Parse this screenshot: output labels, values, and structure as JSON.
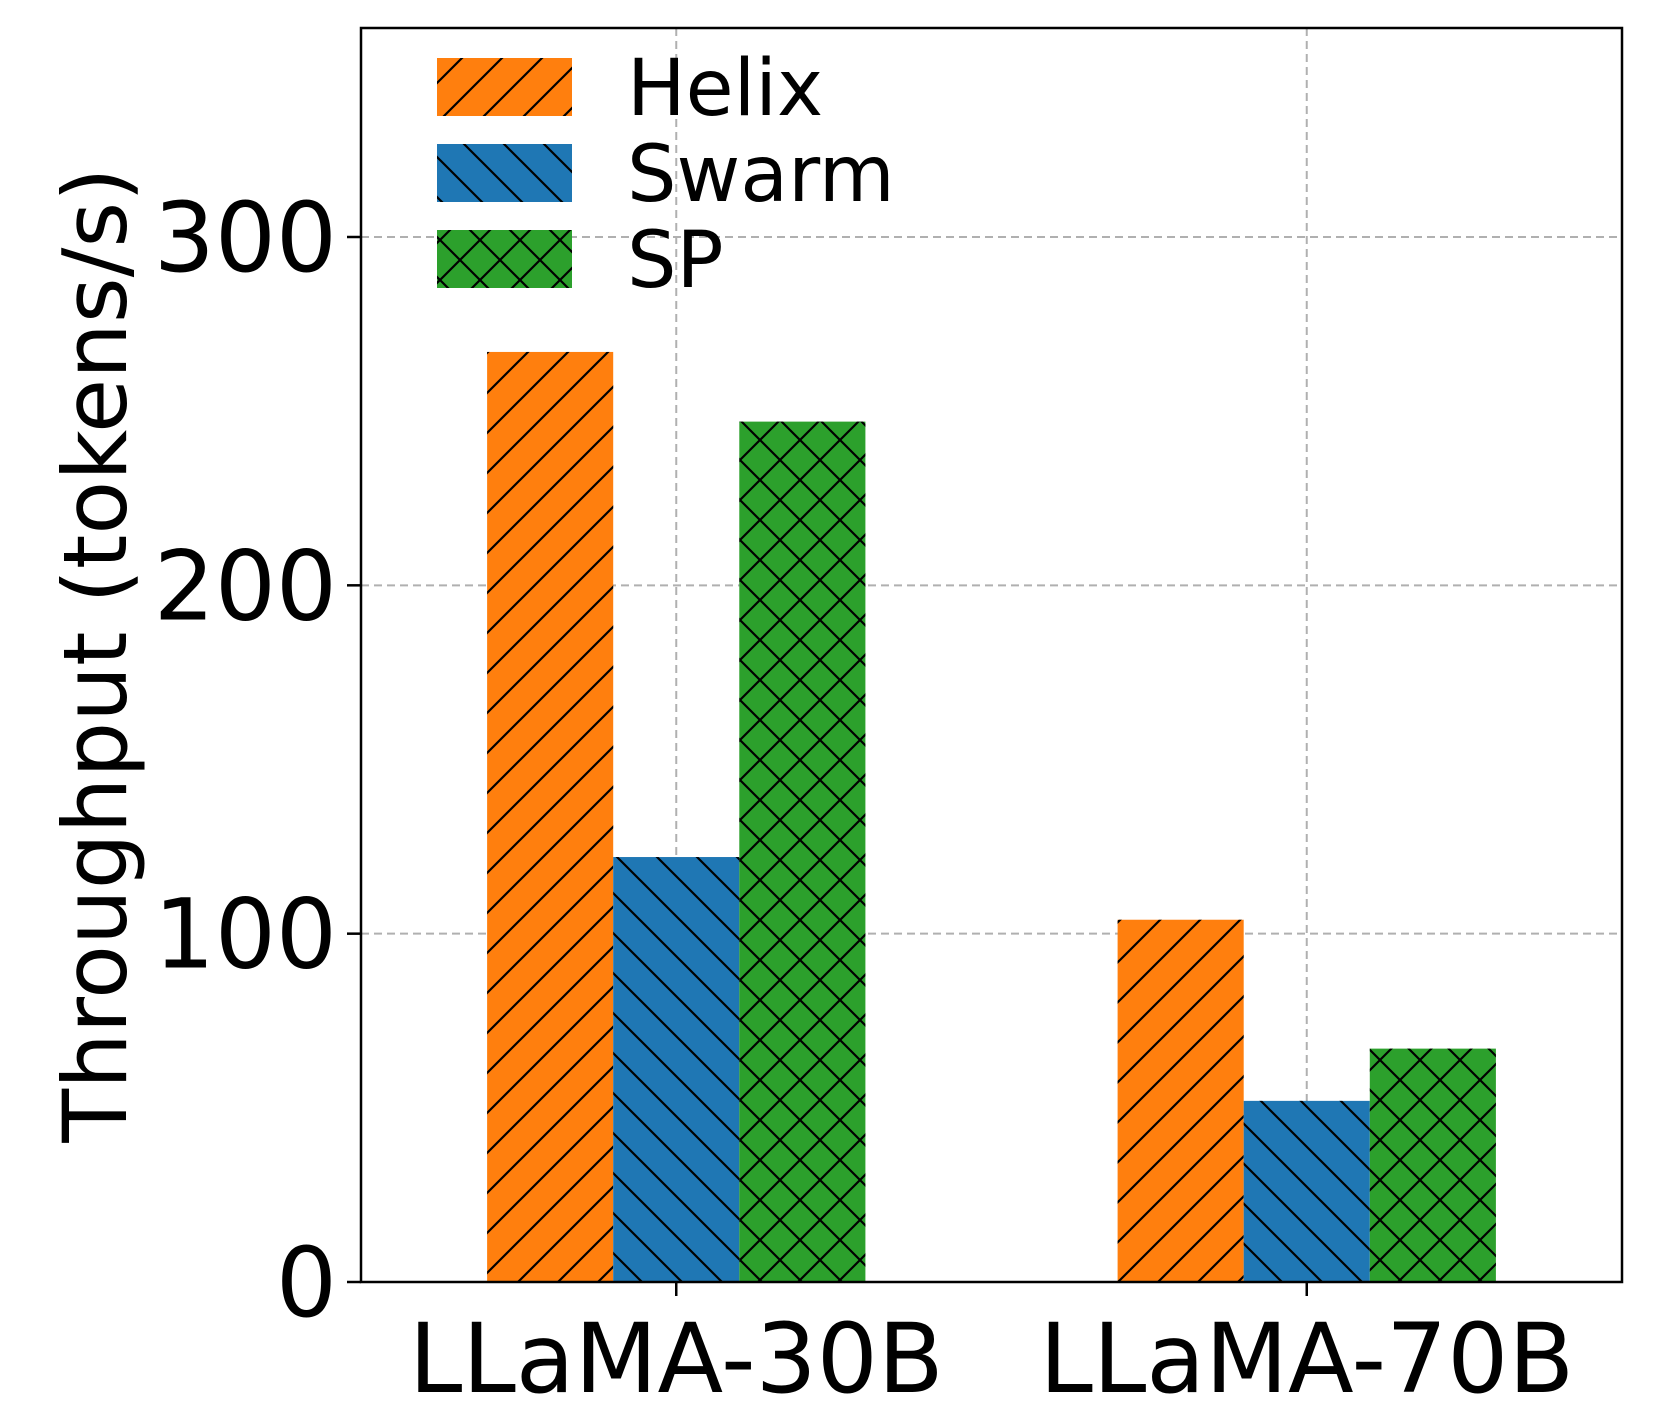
{
  "chart_data": {
    "type": "bar",
    "title": "",
    "xlabel": "",
    "ylabel": "Throughput (tokens/s)",
    "ylim": [
      0,
      360
    ],
    "yticks": [
      0,
      100,
      200,
      300
    ],
    "categories": [
      "LLaMA-30B",
      "LLaMA-70B"
    ],
    "grid": true,
    "legend_position": "top-left",
    "series": [
      {
        "name": "Helix",
        "values": [
          267,
          104
        ],
        "color": "#ff7f0e",
        "hatch": "diagonal-forward"
      },
      {
        "name": "Swarm",
        "values": [
          122,
          52
        ],
        "color": "#1f77b4",
        "hatch": "diagonal-back"
      },
      {
        "name": "SP",
        "values": [
          247,
          67
        ],
        "color": "#2ca02c",
        "hatch": "crosshatch"
      }
    ]
  }
}
